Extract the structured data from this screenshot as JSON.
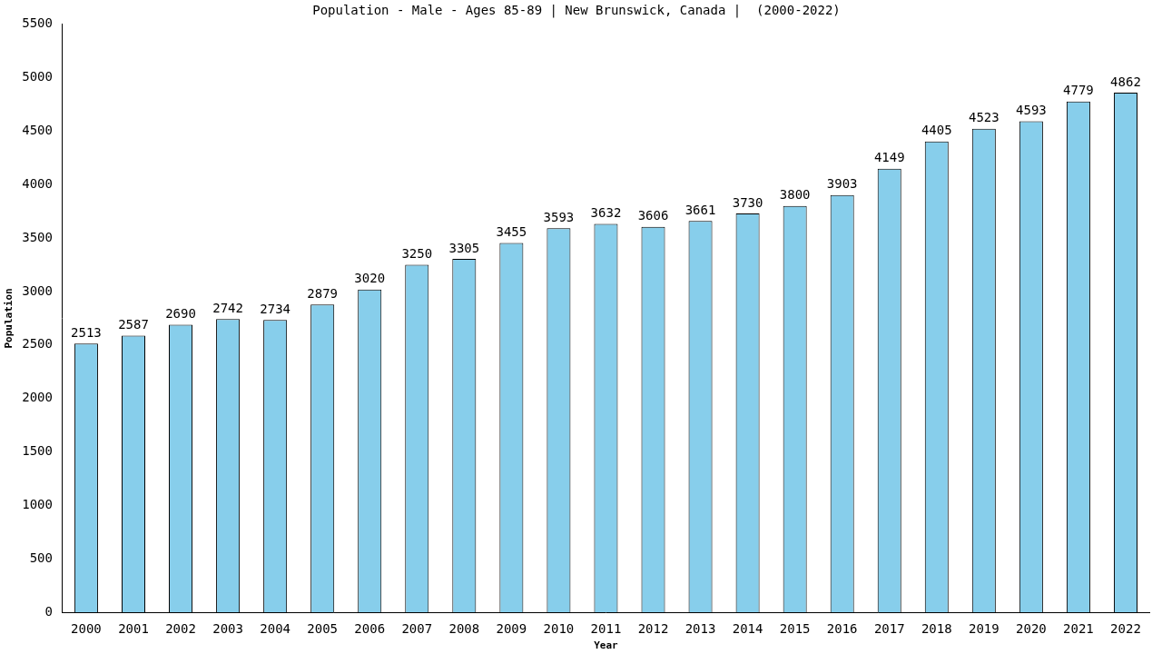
{
  "chart_data": {
    "type": "bar",
    "title": "Population - Male - Ages 85-89 | New Brunswick, Canada |  (2000-2022)",
    "x_label": "Year",
    "y_label": "Population",
    "categories": [
      "2000",
      "2001",
      "2002",
      "2003",
      "2004",
      "2005",
      "2006",
      "2007",
      "2008",
      "2009",
      "2010",
      "2011",
      "2012",
      "2013",
      "2014",
      "2015",
      "2016",
      "2017",
      "2018",
      "2019",
      "2020",
      "2021",
      "2022"
    ],
    "values": [
      2513,
      2587,
      2690,
      2742,
      2734,
      2879,
      3020,
      3250,
      3305,
      3455,
      3593,
      3632,
      3606,
      3661,
      3730,
      3800,
      3903,
      4149,
      4405,
      4523,
      4593,
      4779,
      4862
    ],
    "color": "#87ceeb",
    "ylim": [
      0,
      5500
    ],
    "yticks": [
      0,
      500,
      1000,
      1500,
      2000,
      2500,
      3000,
      3500,
      4000,
      4500,
      5000,
      5500
    ],
    "grid": false,
    "data_labels": true
  }
}
